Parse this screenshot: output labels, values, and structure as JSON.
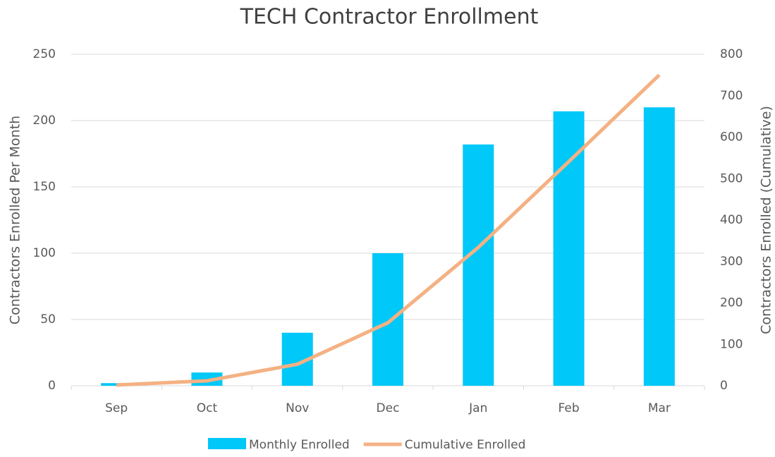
{
  "chart_data": {
    "type": "bar_line",
    "title": "TECH Contractor Enrollment",
    "y_label": "Contractors Enrolled Per Month",
    "y2_label": "Contractors Enrolled (Cumulative)",
    "categories": [
      "Sep",
      "Oct",
      "Nov",
      "Dec",
      "Jan",
      "Feb",
      "Mar"
    ],
    "series": [
      {
        "name": "Monthly Enrolled",
        "type": "bar",
        "color": "#00c8f8",
        "values": [
          2,
          10,
          40,
          100,
          182,
          207,
          210
        ]
      },
      {
        "name": "Cumulative Enrolled",
        "type": "line",
        "axis": "y2",
        "color": "#f4b183",
        "values": [
          2,
          12,
          52,
          152,
          334,
          541,
          750
        ]
      }
    ],
    "ylim": [
      0,
      250
    ],
    "yticks": [
      0,
      50,
      100,
      150,
      200,
      250
    ],
    "y2lim": [
      0,
      800
    ],
    "y2ticks": [
      0,
      100,
      200,
      300,
      400,
      500,
      600,
      700,
      800
    ],
    "grid": true,
    "legend": "bottom"
  }
}
